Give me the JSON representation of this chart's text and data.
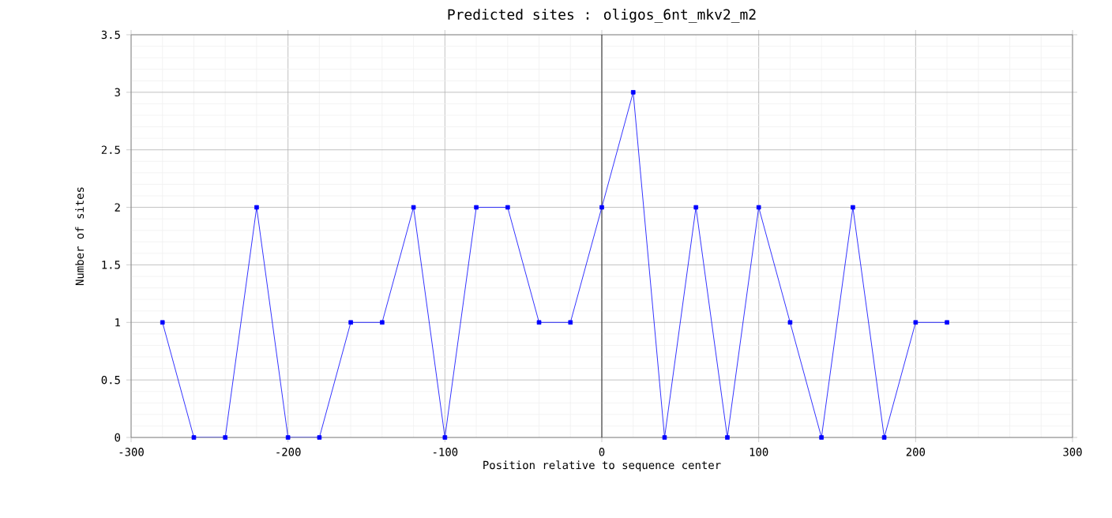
{
  "chart_data": {
    "type": "line",
    "title": "Predicted sites : oligos_6nt_mkv2_m2",
    "xlabel": "Position relative to sequence center",
    "ylabel": "Number of sites",
    "x": [
      -280,
      -260,
      -240,
      -220,
      -200,
      -180,
      -160,
      -140,
      -120,
      -100,
      -80,
      -60,
      -40,
      -20,
      0,
      20,
      40,
      60,
      80,
      100,
      120,
      140,
      160,
      180,
      200,
      220
    ],
    "series": [
      {
        "color": "#0000ff",
        "values": [
          1,
          0,
          0,
          2,
          0,
          0,
          1,
          1,
          2,
          0,
          2,
          2,
          1,
          1,
          2,
          3,
          0,
          2,
          0,
          2,
          1,
          0,
          2,
          0,
          1,
          1
        ]
      }
    ],
    "xlim": [
      -300,
      300
    ],
    "xticks": [
      -300,
      -200,
      -100,
      0,
      100,
      200,
      300
    ],
    "ylim": [
      0,
      3.5
    ],
    "yticks": [
      0,
      0.5,
      1,
      1.5,
      2,
      2.5,
      3,
      3.5
    ],
    "ref_lines": [
      {
        "axis": "x",
        "value": 0,
        "color": "#000000"
      }
    ],
    "grid": true,
    "marker": "square",
    "line_style": "solid"
  }
}
